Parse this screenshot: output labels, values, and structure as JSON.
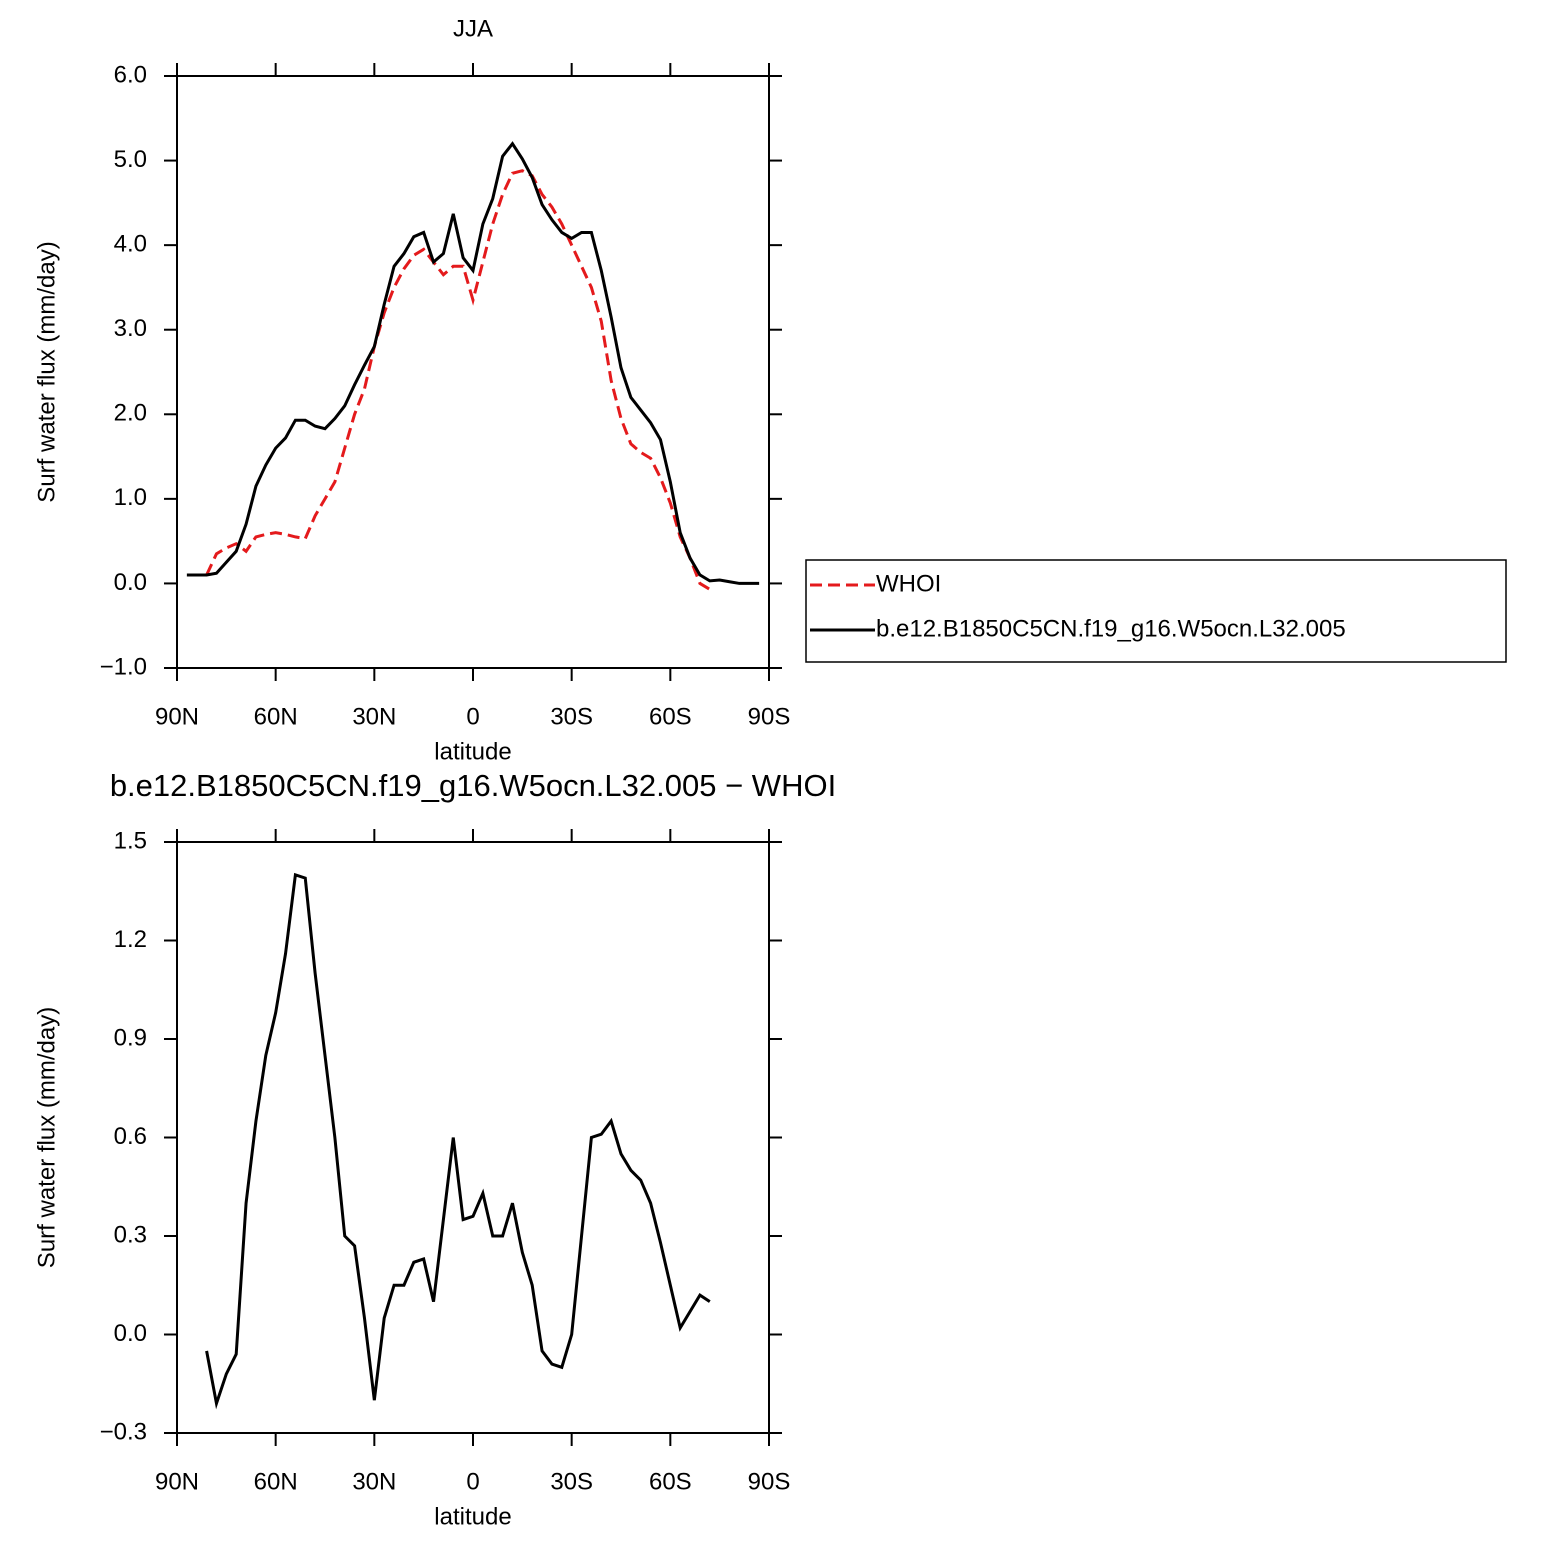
{
  "chart_data": [
    {
      "type": "line",
      "title": "JJA",
      "x_label": "latitude",
      "y_label": "Surf water flux (mm/day)",
      "xlim": [
        90,
        -90
      ],
      "xticks": [
        {
          "value": 90,
          "label": "90N"
        },
        {
          "value": 60,
          "label": "60N"
        },
        {
          "value": 30,
          "label": "30N"
        },
        0,
        {
          "value": -30,
          "label": "30S"
        },
        {
          "value": -60,
          "label": "60S"
        },
        {
          "value": -90,
          "label": "90S"
        }
      ],
      "ylim": [
        -1,
        6
      ],
      "yticks": [
        {
          "value": -1,
          "label": "−1.0"
        },
        {
          "value": 0,
          "label": "0.0"
        },
        {
          "value": 1,
          "label": "1.0"
        },
        {
          "value": 2,
          "label": "2.0"
        },
        {
          "value": 3,
          "label": "3.0"
        },
        {
          "value": 4,
          "label": "4.0"
        },
        {
          "value": 5,
          "label": "5.0"
        },
        {
          "value": 6,
          "label": "6.0"
        }
      ],
      "legend": "right",
      "x": [
        87,
        84,
        81,
        78,
        75,
        72,
        69,
        66,
        63,
        60,
        57,
        54,
        51,
        48,
        45,
        42,
        39,
        36,
        33,
        30,
        27,
        24,
        21,
        18,
        15,
        12,
        9,
        6,
        3,
        0,
        -3,
        -6,
        -9,
        -12,
        -15,
        -18,
        -21,
        -24,
        -27,
        -30,
        -33,
        -36,
        -39,
        -42,
        -45,
        -48,
        -51,
        -54,
        -57,
        -60,
        -63,
        -66,
        -69,
        -72,
        -75,
        -78,
        -81,
        -84,
        -87
      ],
      "series": [
        {
          "name": "WHOI",
          "color": "#e41a1c",
          "style": "dashed",
          "values": [
            null,
            null,
            0.1,
            0.35,
            0.42,
            0.47,
            0.38,
            0.55,
            0.58,
            0.6,
            0.58,
            0.55,
            0.53,
            0.8,
            1.0,
            1.2,
            1.6,
            2.0,
            2.3,
            2.8,
            3.2,
            3.5,
            3.72,
            3.88,
            3.95,
            3.8,
            3.65,
            3.75,
            3.75,
            3.35,
            3.8,
            4.25,
            4.6,
            4.85,
            4.88,
            4.82,
            4.6,
            4.45,
            4.25,
            4.0,
            3.75,
            3.5,
            3.1,
            2.4,
            1.95,
            1.65,
            1.55,
            1.48,
            1.25,
            0.95,
            0.55,
            0.3,
            0.0,
            -0.07,
            null,
            null,
            null,
            null,
            null
          ]
        },
        {
          "name": "b.e12.B1850C5CN.f19_g16.W5ocn.L32.005",
          "color": "#000000",
          "style": "solid",
          "values": [
            0.1,
            0.1,
            0.1,
            0.12,
            0.25,
            0.38,
            0.7,
            1.15,
            1.4,
            1.6,
            1.72,
            1.93,
            1.93,
            1.86,
            1.83,
            1.95,
            2.1,
            2.35,
            2.58,
            2.8,
            3.3,
            3.75,
            3.9,
            4.1,
            4.15,
            3.8,
            3.9,
            4.37,
            3.85,
            3.7,
            4.25,
            4.55,
            5.05,
            5.2,
            5.02,
            4.8,
            4.48,
            4.3,
            4.15,
            4.08,
            4.15,
            4.15,
            3.7,
            3.15,
            2.55,
            2.2,
            2.05,
            1.9,
            1.7,
            1.2,
            0.6,
            0.3,
            0.1,
            0.03,
            0.04,
            0.02,
            0.0,
            0.0,
            0.0
          ]
        }
      ]
    },
    {
      "type": "line",
      "title": "b.e12.B1850C5CN.f19_g16.W5ocn.L32.005 − WHOI",
      "x_label": "latitude",
      "y_label": "Surf water flux (mm/day)",
      "xlim": [
        90,
        -90
      ],
      "xticks": [
        {
          "value": 90,
          "label": "90N"
        },
        {
          "value": 60,
          "label": "60N"
        },
        {
          "value": 30,
          "label": "30N"
        },
        0,
        {
          "value": -30,
          "label": "30S"
        },
        {
          "value": -60,
          "label": "60S"
        },
        {
          "value": -90,
          "label": "90S"
        }
      ],
      "ylim": [
        -0.3,
        1.5
      ],
      "yticks": [
        {
          "value": -0.3,
          "label": "−0.3"
        },
        {
          "value": 0,
          "label": "0.0"
        },
        0.3,
        0.6,
        0.9,
        1.2,
        1.5
      ],
      "x": [
        81,
        78,
        75,
        72,
        69,
        66,
        63,
        60,
        57,
        54,
        51,
        48,
        45,
        42,
        39,
        36,
        33,
        30,
        27,
        24,
        21,
        18,
        15,
        12,
        9,
        6,
        3,
        0,
        -3,
        -6,
        -9,
        -12,
        -15,
        -18,
        -21,
        -24,
        -27,
        -30,
        -33,
        -36,
        -39,
        -42,
        -45,
        -48,
        -51,
        -54,
        -57,
        -60,
        -63,
        -66,
        -69,
        -72
      ],
      "series": [
        {
          "color": "#000000",
          "style": "solid",
          "values": [
            -0.05,
            -0.21,
            -0.12,
            -0.06,
            0.4,
            0.65,
            0.85,
            0.98,
            1.16,
            1.4,
            1.39,
            1.1,
            0.85,
            0.6,
            0.3,
            0.27,
            0.05,
            -0.2,
            0.05,
            0.15,
            0.15,
            0.22,
            0.23,
            0.1,
            0.35,
            0.6,
            0.35,
            0.36,
            0.43,
            0.3,
            0.3,
            0.4,
            0.25,
            0.15,
            -0.05,
            -0.09,
            -0.1,
            0.0,
            0.3,
            0.6,
            0.61,
            0.65,
            0.55,
            0.5,
            0.47,
            0.4,
            0.28,
            0.15,
            0.02,
            0.07,
            0.12,
            0.1
          ]
        }
      ]
    }
  ]
}
